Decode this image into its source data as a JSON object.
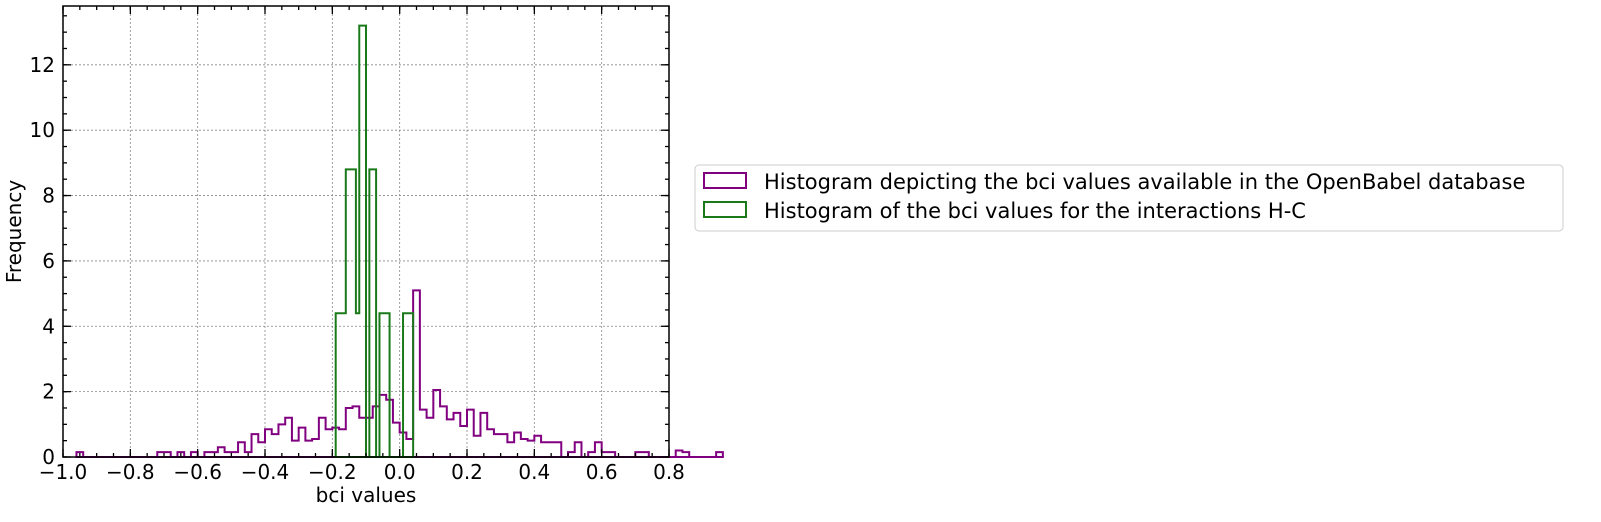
{
  "chart_data": {
    "type": "histogram",
    "xlabel": "bci values",
    "ylabel": "Frequency",
    "xlim": [
      -1.0,
      0.8
    ],
    "ylim": [
      0,
      13.8
    ],
    "xticks": [
      -1.0,
      -0.8,
      -0.6,
      -0.4,
      -0.2,
      0.0,
      0.2,
      0.4,
      0.6,
      0.8
    ],
    "xtick_labels": [
      "−1.0",
      "−0.8",
      "−0.6",
      "−0.4",
      "−0.2",
      "0.0",
      "0.2",
      "0.4",
      "0.6",
      "0.8"
    ],
    "yticks": [
      0,
      2,
      4,
      6,
      8,
      10,
      12
    ],
    "ytick_labels": [
      "0",
      "2",
      "4",
      "6",
      "8",
      "10",
      "12"
    ],
    "grid": true,
    "legend_position": "right, outside the axes",
    "series": [
      {
        "name": "Histogram depicting the bci values available in the OpenBabel database",
        "color": "#800080",
        "histtype": "step",
        "bin_start": -0.96,
        "bin_width": 0.02,
        "values": [
          0.15,
          0,
          0,
          0,
          0,
          0,
          0,
          0,
          0,
          0,
          0,
          0,
          0.15,
          0.15,
          0,
          0.15,
          0,
          0.15,
          0,
          0.15,
          0.15,
          0.3,
          0.15,
          0.15,
          0.45,
          0.15,
          0.7,
          0.45,
          0.85,
          0.7,
          1.0,
          1.2,
          0.5,
          0.9,
          0.5,
          0.55,
          1.2,
          0.85,
          0.9,
          0.85,
          1.5,
          1.55,
          1.2,
          1.2,
          1.55,
          1.9,
          1.75,
          1.05,
          0.75,
          0.55,
          5.1,
          1.45,
          1.2,
          2.05,
          1.55,
          1.15,
          1.35,
          0.95,
          1.45,
          0.65,
          1.35,
          0.85,
          0.7,
          0.7,
          0.45,
          0.75,
          0.55,
          0.5,
          0.65,
          0.45,
          0.45,
          0.45,
          0,
          0.15,
          0.45,
          0,
          0.15,
          0.45,
          0.15,
          0.15,
          0,
          0,
          0,
          0.15,
          0.15,
          0,
          0,
          0,
          0,
          0.2,
          0.15,
          0,
          0,
          0,
          0,
          0.15
        ]
      },
      {
        "name": "Histogram of the bci values for the interactions H-C",
        "color": "#1a7a1a",
        "histtype": "step",
        "bins": [
          [
            -0.19,
            -0.18,
            4.4
          ],
          [
            -0.18,
            -0.16,
            4.4
          ],
          [
            -0.16,
            -0.13,
            8.8
          ],
          [
            -0.13,
            -0.12,
            4.4
          ],
          [
            -0.12,
            -0.1,
            13.2
          ],
          [
            -0.1,
            -0.09,
            0
          ],
          [
            -0.09,
            -0.07,
            8.8
          ],
          [
            -0.07,
            -0.06,
            0
          ],
          [
            -0.06,
            -0.03,
            4.4
          ],
          [
            -0.03,
            0.0,
            0
          ],
          [
            0.0,
            0.01,
            0
          ],
          [
            0.01,
            0.04,
            4.4
          ]
        ]
      }
    ]
  }
}
